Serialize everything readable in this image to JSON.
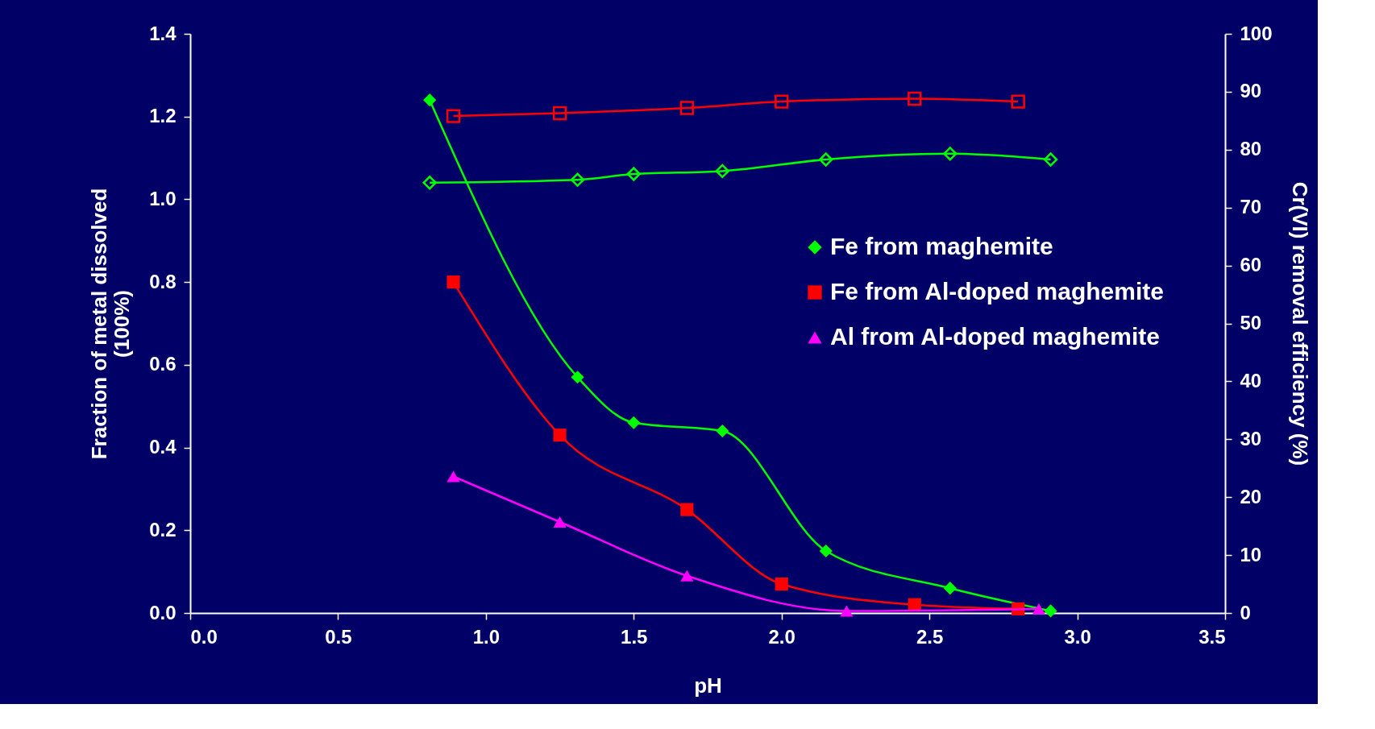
{
  "chart_data": {
    "type": "line",
    "xlabel": "pH",
    "ylabel": "Fraction of metal dissolved\n(100%)",
    "y2label": "Cr(VI) removal efficiency (%)",
    "xlim": [
      0,
      3.5
    ],
    "xticks": [
      {
        "value": 0,
        "label": "0.0"
      },
      0.5,
      {
        "value": 1,
        "label": "1.0"
      },
      1.5,
      {
        "value": 2,
        "label": "2.0"
      },
      2.5,
      {
        "value": 3,
        "label": "3.0"
      },
      3.5
    ],
    "ylim": [
      0,
      1.4
    ],
    "yticks": [
      {
        "value": 0,
        "label": "0.0"
      },
      0.2,
      0.4,
      0.6,
      0.8,
      {
        "value": 1,
        "label": "1.0"
      },
      1.2,
      1.4
    ],
    "y2lim": [
      0,
      100
    ],
    "y2ticks": [
      0,
      10,
      20,
      30,
      40,
      50,
      60,
      70,
      80,
      90,
      100
    ],
    "grid": false,
    "legend": "right",
    "line_style": "solid",
    "series": [
      {
        "name": "Fe from maghemite",
        "color": "#00ff00",
        "marker": "diamond",
        "x": [
          0.81,
          1.31,
          1.5,
          1.8,
          2.15,
          2.57,
          2.91
        ],
        "values": [
          1.24,
          0.57,
          0.46,
          0.44,
          0.15,
          0.06,
          0.005
        ]
      },
      {
        "name": "Fe from Al-doped maghemite",
        "color": "#ff0000",
        "marker": "square",
        "x": [
          0.89,
          1.25,
          1.68,
          2.0,
          2.45,
          2.8
        ],
        "values": [
          0.8,
          0.43,
          0.25,
          0.07,
          0.02,
          0.01
        ]
      },
      {
        "name": "Al from Al-doped maghemite",
        "color": "#ff00ff",
        "marker": "triangle",
        "x": [
          0.89,
          1.25,
          1.68,
          2.22,
          2.87
        ],
        "values": [
          0.33,
          0.22,
          0.09,
          0.005,
          0.01
        ]
      },
      {
        "color": "#00ff00",
        "marker": "diamond",
        "axis": "y2",
        "x": [
          0.81,
          1.31,
          1.5,
          1.8,
          2.15,
          2.57,
          2.91
        ],
        "values": [
          74.3,
          74.8,
          75.8,
          76.3,
          78.3,
          79.3,
          78.3
        ]
      },
      {
        "color": "#ff0000",
        "marker": "square",
        "axis": "y2",
        "x": [
          0.89,
          1.25,
          1.68,
          2.0,
          2.45,
          2.8
        ],
        "values": [
          85.8,
          86.3,
          87.2,
          88.3,
          88.8,
          88.3
        ]
      }
    ]
  }
}
